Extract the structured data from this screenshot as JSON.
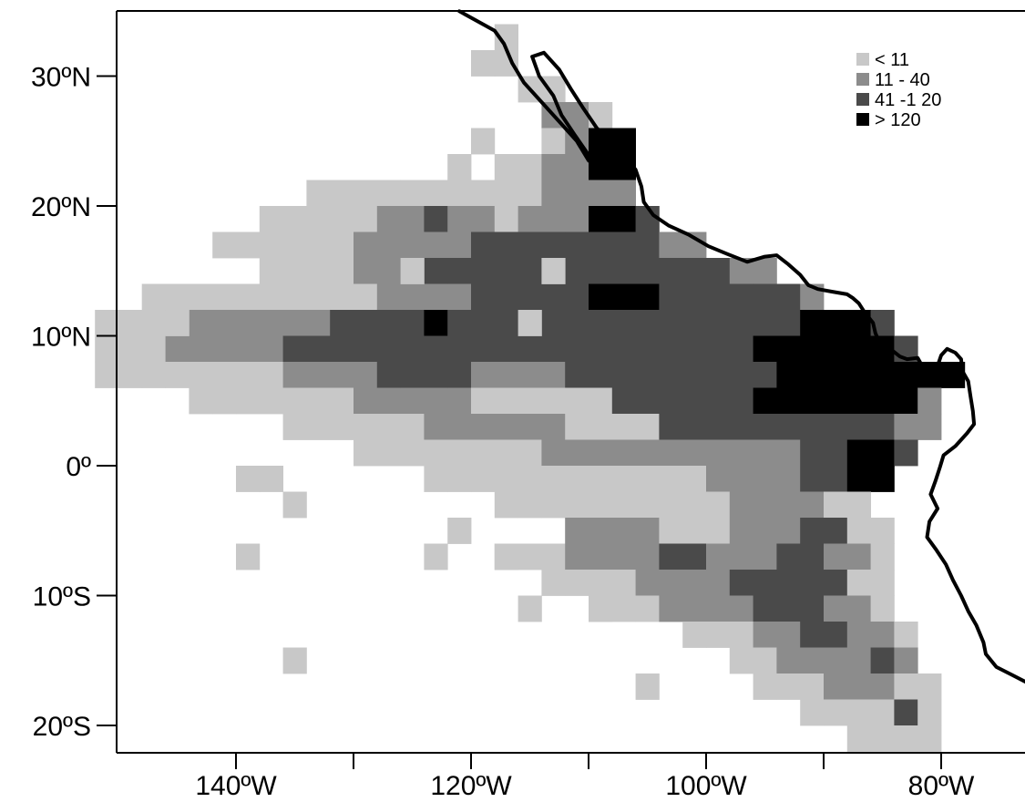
{
  "axes": {
    "y_ticks": [
      {
        "label": "30ºN",
        "lat": 30
      },
      {
        "label": "20ºN",
        "lat": 20
      },
      {
        "label": "10ºN",
        "lat": 10
      },
      {
        "label": "0º",
        "lat": 0
      },
      {
        "label": "10ºS",
        "lat": -10
      },
      {
        "label": "20ºS",
        "lat": -20
      }
    ],
    "x_ticks": [
      {
        "label": "140ºW",
        "lon": -140
      },
      {
        "label": "120ºW",
        "lon": -120
      },
      {
        "label": "100ºW",
        "lon": -100
      },
      {
        "label": "80ºW",
        "lon": -80
      }
    ],
    "x_minor_ticks": [
      -130,
      -110,
      -90
    ],
    "lon_range": [
      -150,
      -72
    ],
    "lat_range": [
      -22,
      35
    ]
  },
  "legend": {
    "placement": "top-right",
    "items": [
      {
        "label": "< 11",
        "color": "#c8c8c8"
      },
      {
        "label": "11 - 40",
        "color": "#8c8c8c"
      },
      {
        "label": "41 -1 20",
        "color": "#4a4a4a"
      },
      {
        "label": "> 120",
        "color": "#000000"
      }
    ]
  },
  "grid_map": {
    "cell_size_deg": 2,
    "rows": [
      {
        "lat": 32,
        "cells": [
          [
            -118,
            -116,
            0
          ]
        ]
      },
      {
        "lat": 30,
        "cells": [
          [
            -120,
            -116,
            0
          ]
        ]
      },
      {
        "lat": 28,
        "cells": [
          [
            -116,
            -112,
            0
          ]
        ]
      },
      {
        "lat": 26,
        "cells": [
          [
            -114,
            -110,
            1
          ],
          [
            -110,
            -108,
            0
          ]
        ]
      },
      {
        "lat": 24,
        "cells": [
          [
            -120,
            -118,
            0
          ],
          [
            -114,
            -112,
            0
          ],
          [
            -112,
            -110,
            1
          ],
          [
            -110,
            -106,
            3
          ]
        ]
      },
      {
        "lat": 22,
        "cells": [
          [
            -122,
            -120,
            0
          ],
          [
            -118,
            -114,
            0
          ],
          [
            -114,
            -110,
            1
          ],
          [
            -110,
            -106,
            3
          ]
        ]
      },
      {
        "lat": 20,
        "cells": [
          [
            -134,
            -114,
            0
          ],
          [
            -114,
            -106,
            1
          ]
        ]
      },
      {
        "lat": 18,
        "cells": [
          [
            -138,
            -128,
            0
          ],
          [
            -128,
            -124,
            1
          ],
          [
            -124,
            -122,
            2
          ],
          [
            -122,
            -118,
            1
          ],
          [
            -118,
            -116,
            0
          ],
          [
            -116,
            -110,
            1
          ],
          [
            -110,
            -106,
            3
          ],
          [
            -106,
            -104,
            2
          ]
        ]
      },
      {
        "lat": 16,
        "cells": [
          [
            -142,
            -134,
            0
          ],
          [
            -134,
            -130,
            0
          ],
          [
            -130,
            -120,
            1
          ],
          [
            -120,
            -104,
            2
          ],
          [
            -104,
            -100,
            1
          ]
        ]
      },
      {
        "lat": 14,
        "cells": [
          [
            -138,
            -130,
            0
          ],
          [
            -130,
            -124,
            1
          ],
          [
            -124,
            -98,
            2
          ],
          [
            -98,
            -94,
            1
          ]
        ]
      },
      {
        "lat": 12,
        "cells": [
          [
            -148,
            -136,
            0
          ],
          [
            -136,
            -128,
            0
          ],
          [
            -128,
            -120,
            1
          ],
          [
            -120,
            -110,
            2
          ],
          [
            -110,
            -104,
            3
          ],
          [
            -104,
            -92,
            2
          ],
          [
            -92,
            -90,
            1
          ]
        ]
      },
      {
        "lat": 10,
        "cells": [
          [
            -152,
            -144,
            0
          ],
          [
            -144,
            -138,
            1
          ],
          [
            -138,
            -132,
            1
          ],
          [
            -132,
            -124,
            2
          ],
          [
            -124,
            -122,
            3
          ],
          [
            -122,
            -92,
            2
          ],
          [
            -92,
            -86,
            3
          ],
          [
            -86,
            -84,
            2
          ]
        ]
      },
      {
        "lat": 8,
        "cells": [
          [
            -152,
            -146,
            0
          ],
          [
            -146,
            -136,
            1
          ],
          [
            -136,
            -120,
            2
          ],
          [
            -120,
            -104,
            2
          ],
          [
            -104,
            -96,
            2
          ],
          [
            -96,
            -88,
            3
          ],
          [
            -88,
            -84,
            3
          ],
          [
            -84,
            -82,
            2
          ]
        ]
      },
      {
        "lat": 6,
        "cells": [
          [
            -152,
            -144,
            0
          ],
          [
            -144,
            -136,
            0
          ],
          [
            -136,
            -128,
            1
          ],
          [
            -128,
            -120,
            2
          ],
          [
            -120,
            -112,
            1
          ],
          [
            -112,
            -104,
            2
          ],
          [
            -104,
            -94,
            2
          ],
          [
            -94,
            -82,
            3
          ],
          [
            -82,
            -78,
            3
          ]
        ]
      },
      {
        "lat": 4,
        "cells": [
          [
            -144,
            -130,
            0
          ],
          [
            -130,
            -120,
            1
          ],
          [
            -120,
            -108,
            0
          ],
          [
            -108,
            -96,
            2
          ],
          [
            -96,
            -82,
            3
          ],
          [
            -82,
            -80,
            1
          ]
        ]
      },
      {
        "lat": 2,
        "cells": [
          [
            -136,
            -124,
            0
          ],
          [
            -124,
            -112,
            1
          ],
          [
            -112,
            -104,
            0
          ],
          [
            -104,
            -88,
            2
          ],
          [
            -88,
            -84,
            2
          ],
          [
            -84,
            -80,
            1
          ]
        ]
      },
      {
        "lat": 0,
        "cells": [
          [
            -130,
            -114,
            0
          ],
          [
            -114,
            -100,
            1
          ],
          [
            -100,
            -92,
            1
          ],
          [
            -92,
            -88,
            2
          ],
          [
            -88,
            -84,
            3
          ],
          [
            -84,
            -82,
            2
          ]
        ]
      },
      {
        "lat": -2,
        "cells": [
          [
            -138,
            -136,
            0
          ],
          [
            -124,
            -100,
            0
          ],
          [
            -100,
            -92,
            1
          ],
          [
            -92,
            -88,
            2
          ],
          [
            -88,
            -84,
            3
          ]
        ]
      },
      {
        "lat": -4,
        "cells": [
          [
            -118,
            -98,
            0
          ],
          [
            -98,
            -90,
            1
          ],
          [
            -90,
            -86,
            0
          ]
        ]
      },
      {
        "lat": -6,
        "cells": [
          [
            -112,
            -104,
            1
          ],
          [
            -104,
            -98,
            0
          ],
          [
            -98,
            -92,
            1
          ],
          [
            -92,
            -88,
            2
          ],
          [
            -88,
            -84,
            0
          ]
        ]
      },
      {
        "lat": -8,
        "cells": [
          [
            -118,
            -112,
            0
          ],
          [
            -112,
            -104,
            1
          ],
          [
            -104,
            -100,
            2
          ],
          [
            -100,
            -94,
            1
          ],
          [
            -94,
            -90,
            2
          ],
          [
            -90,
            -86,
            1
          ],
          [
            -86,
            -84,
            0
          ]
        ]
      },
      {
        "lat": -10,
        "cells": [
          [
            -114,
            -106,
            0
          ],
          [
            -106,
            -98,
            1
          ],
          [
            -98,
            -92,
            2
          ],
          [
            -92,
            -88,
            2
          ],
          [
            -88,
            -84,
            0
          ]
        ]
      },
      {
        "lat": -12,
        "cells": [
          [
            -110,
            -104,
            0
          ],
          [
            -104,
            -96,
            1
          ],
          [
            -96,
            -90,
            2
          ],
          [
            -90,
            -86,
            1
          ],
          [
            -86,
            -84,
            0
          ]
        ]
      },
      {
        "lat": -14,
        "cells": [
          [
            -102,
            -96,
            0
          ],
          [
            -96,
            -92,
            1
          ],
          [
            -92,
            -88,
            2
          ],
          [
            -88,
            -84,
            1
          ],
          [
            -84,
            -82,
            0
          ]
        ]
      },
      {
        "lat": -16,
        "cells": [
          [
            -98,
            -94,
            0
          ],
          [
            -94,
            -86,
            1
          ],
          [
            -86,
            -84,
            2
          ],
          [
            -84,
            -82,
            1
          ]
        ]
      },
      {
        "lat": -18,
        "cells": [
          [
            -96,
            -90,
            0
          ],
          [
            -90,
            -84,
            1
          ],
          [
            -84,
            -80,
            0
          ]
        ]
      },
      {
        "lat": -20,
        "cells": [
          [
            -92,
            -84,
            0
          ],
          [
            -84,
            -82,
            2
          ],
          [
            -82,
            -80,
            0
          ]
        ]
      },
      {
        "lat": -22,
        "cells": [
          [
            -88,
            -80,
            0
          ]
        ]
      }
    ],
    "scatter_cells": [
      {
        "lon": -148,
        "lat": 12,
        "cls": 0
      },
      {
        "lon": -146,
        "lat": 10,
        "cls": 0
      },
      {
        "lon": -150,
        "lat": 8,
        "cls": 0
      },
      {
        "lon": -140,
        "lat": -2,
        "cls": 0
      },
      {
        "lon": -136,
        "lat": -4,
        "cls": 0
      },
      {
        "lon": -140,
        "lat": -8,
        "cls": 0
      },
      {
        "lon": -136,
        "lat": -16,
        "cls": 0
      },
      {
        "lon": -122,
        "lat": -6,
        "cls": 0
      },
      {
        "lon": -124,
        "lat": -8,
        "cls": 0
      },
      {
        "lon": -118,
        "lat": -8,
        "cls": 0
      },
      {
        "lon": -116,
        "lat": -12,
        "cls": 0
      },
      {
        "lon": -110,
        "lat": -12,
        "cls": 0
      },
      {
        "lon": -106,
        "lat": -18,
        "cls": 0
      },
      {
        "lon": -126,
        "lat": 14,
        "cls": 0
      },
      {
        "lon": -130,
        "lat": 2,
        "cls": 0
      },
      {
        "lon": -116,
        "lat": 10,
        "cls": 0
      },
      {
        "lon": -114,
        "lat": 14,
        "cls": 0
      }
    ]
  },
  "coastline": [
    [
      -121,
      35
    ],
    [
      -119,
      34
    ],
    [
      -118,
      33.5
    ],
    [
      -117.2,
      32.5
    ],
    [
      -116.5,
      31
    ],
    [
      -115.5,
      29.5
    ],
    [
      -114,
      28
    ],
    [
      -112.5,
      26.5
    ],
    [
      -111,
      25
    ],
    [
      -110,
      23.5
    ],
    [
      -109.3,
      23
    ],
    [
      -110.2,
      24.2
    ],
    [
      -111.2,
      25.5
    ],
    [
      -112.3,
      27
    ],
    [
      -113,
      28.5
    ],
    [
      -114.2,
      30
    ],
    [
      -114.8,
      31.5
    ],
    [
      -113.8,
      31.8
    ],
    [
      -112.5,
      30.5
    ],
    [
      -111.5,
      29
    ],
    [
      -110.5,
      27.6
    ],
    [
      -109.3,
      26
    ],
    [
      -108.2,
      25
    ],
    [
      -107.2,
      24
    ],
    [
      -106,
      22.8
    ],
    [
      -105.5,
      21.5
    ],
    [
      -105.3,
      20.3
    ],
    [
      -104.5,
      19.3
    ],
    [
      -103.2,
      18.5
    ],
    [
      -101.5,
      17.8
    ],
    [
      -99.8,
      16.9
    ],
    [
      -98.2,
      16.3
    ],
    [
      -96.5,
      15.7
    ],
    [
      -95,
      16.1
    ],
    [
      -94,
      16.2
    ],
    [
      -93,
      15.5
    ],
    [
      -92,
      14.7
    ],
    [
      -91.3,
      13.9
    ],
    [
      -90.5,
      13.6
    ],
    [
      -89.3,
      13.4
    ],
    [
      -88,
      13.2
    ],
    [
      -87.5,
      12.9
    ],
    [
      -87,
      12.5
    ],
    [
      -86.5,
      11.8
    ],
    [
      -85.8,
      11
    ],
    [
      -85.6,
      10.2
    ],
    [
      -85.3,
      9.6
    ],
    [
      -84.8,
      9.2
    ],
    [
      -84.2,
      8.9
    ],
    [
      -83.5,
      8.4
    ],
    [
      -82.9,
      8.2
    ],
    [
      -82,
      8.3
    ],
    [
      -81.5,
      7.5
    ],
    [
      -80.8,
      7.3
    ],
    [
      -80.3,
      7.7
    ],
    [
      -80,
      8.5
    ],
    [
      -79.5,
      9
    ],
    [
      -78.8,
      8.7
    ],
    [
      -78.3,
      8.2
    ],
    [
      -78.2,
      7.3
    ],
    [
      -77.7,
      6.5
    ],
    [
      -77.5,
      5.3
    ],
    [
      -77.3,
      4.2
    ],
    [
      -77.2,
      3.2
    ],
    [
      -77.8,
      2.5
    ],
    [
      -78.8,
      1.5
    ],
    [
      -79.8,
      0.8
    ],
    [
      -80.1,
      -0.1
    ],
    [
      -80.5,
      -1.2
    ],
    [
      -80.9,
      -2.2
    ],
    [
      -80.3,
      -3.3
    ],
    [
      -81,
      -4.3
    ],
    [
      -81.2,
      -5.5
    ],
    [
      -80.4,
      -6.5
    ],
    [
      -79.6,
      -7.6
    ],
    [
      -79,
      -8.8
    ],
    [
      -78.3,
      -10
    ],
    [
      -77.7,
      -11.2
    ],
    [
      -77,
      -12.3
    ],
    [
      -76.4,
      -13.6
    ],
    [
      -76.2,
      -14.5
    ],
    [
      -75.3,
      -15.5
    ],
    [
      -74,
      -16.1
    ],
    [
      -72.5,
      -16.8
    ],
    [
      -71.5,
      -17.5
    ]
  ]
}
